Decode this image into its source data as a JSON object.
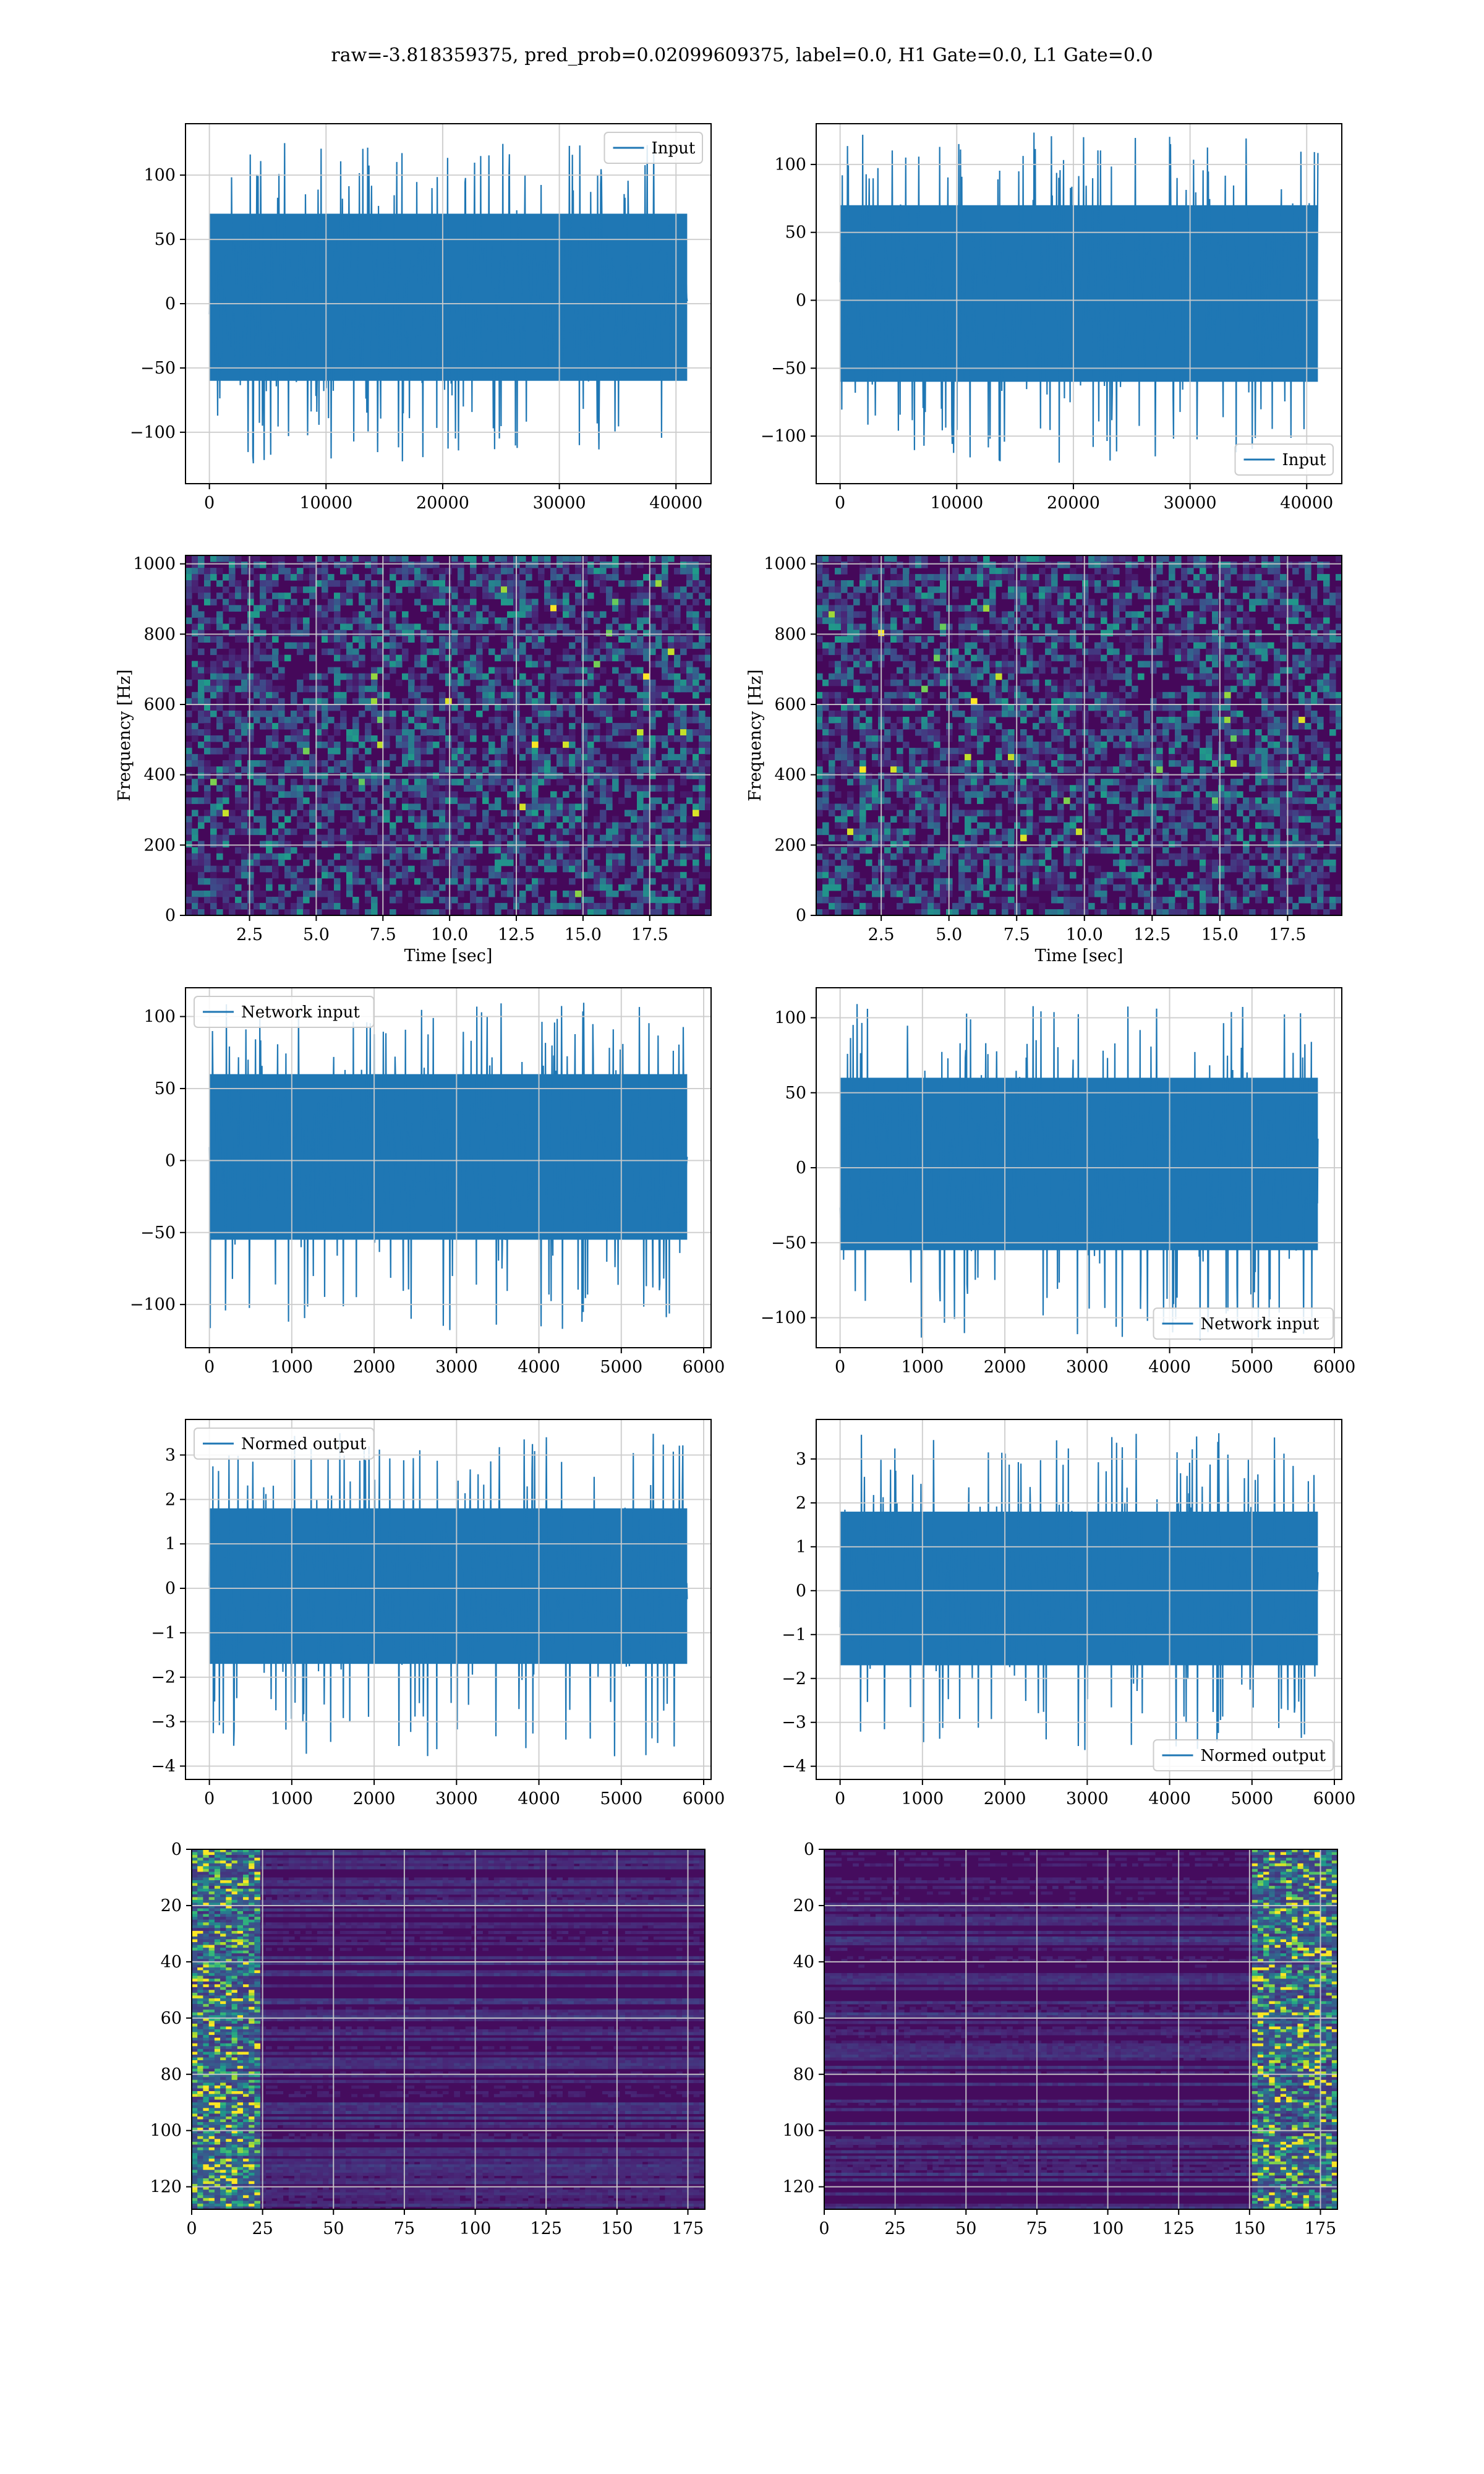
{
  "figure": {
    "suptitle": "raw=-3.818359375, pred_prob=0.02099609375, label=0.0, H1 Gate=0.0, L1 Gate=0.0",
    "colors": {
      "line": "#1f77b4",
      "grid": "#cccccc",
      "spine": "#000000"
    },
    "colormap": "viridis"
  },
  "chart_data": [
    {
      "id": "input-h1",
      "type": "line",
      "title": "",
      "xlabel": "",
      "ylabel": "",
      "series": [
        {
          "name": "Input",
          "n_samples": 40960,
          "amplitude_range": [
            -125,
            125
          ],
          "typical_band": [
            -60,
            70
          ]
        }
      ],
      "xlim": [
        -2048,
        43008
      ],
      "ylim": [
        -140,
        140
      ],
      "xticks": [
        0,
        10000,
        20000,
        30000,
        40000
      ],
      "xtick_labels": [
        "0",
        "10000",
        "20000",
        "30000",
        "40000"
      ],
      "yticks": [
        -100,
        -50,
        0,
        50,
        100
      ],
      "ytick_labels": [
        "−100",
        "−50",
        "0",
        "50",
        "100"
      ],
      "grid": true,
      "legend_placement": "upper right"
    },
    {
      "id": "input-l1",
      "type": "line",
      "title": "",
      "xlabel": "",
      "ylabel": "",
      "series": [
        {
          "name": "Input",
          "n_samples": 40960,
          "amplitude_range": [
            -120,
            125
          ],
          "typical_band": [
            -60,
            70
          ]
        }
      ],
      "xlim": [
        -2048,
        43008
      ],
      "ylim": [
        -135,
        130
      ],
      "xticks": [
        0,
        10000,
        20000,
        30000,
        40000
      ],
      "xtick_labels": [
        "0",
        "10000",
        "20000",
        "30000",
        "40000"
      ],
      "yticks": [
        -100,
        -50,
        0,
        50,
        100
      ],
      "ytick_labels": [
        "−100",
        "−50",
        "0",
        "50",
        "100"
      ],
      "grid": true,
      "legend_placement": "lower right"
    },
    {
      "id": "spectrogram-h1",
      "type": "heatmap",
      "title": "",
      "xlabel": "Time [sec]",
      "ylabel": "Frequency [Hz]",
      "xlim": [
        0.1,
        19.8
      ],
      "ylim": [
        0,
        1024
      ],
      "xticks": [
        2.5,
        5.0,
        7.5,
        10.0,
        12.5,
        15.0,
        17.5
      ],
      "xtick_labels": [
        "2.5",
        "5.0",
        "7.5",
        "10.0",
        "12.5",
        "15.0",
        "17.5"
      ],
      "yticks": [
        0,
        200,
        400,
        600,
        800,
        1000
      ],
      "ytick_labels": [
        "0",
        "200",
        "400",
        "600",
        "800",
        "1000"
      ],
      "grid": true,
      "colormap": "viridis",
      "texture": "speckle"
    },
    {
      "id": "spectrogram-l1",
      "type": "heatmap",
      "title": "",
      "xlabel": "Time [sec]",
      "ylabel": "Frequency [Hz]",
      "xlim": [
        0.1,
        19.5
      ],
      "ylim": [
        0,
        1024
      ],
      "xticks": [
        2.5,
        5.0,
        7.5,
        10.0,
        12.5,
        15.0,
        17.5
      ],
      "xtick_labels": [
        "2.5",
        "5.0",
        "7.5",
        "10.0",
        "12.5",
        "15.0",
        "17.5"
      ],
      "yticks": [
        0,
        200,
        400,
        600,
        800,
        1000
      ],
      "ytick_labels": [
        "0",
        "200",
        "400",
        "600",
        "800",
        "1000"
      ],
      "grid": true,
      "colormap": "viridis",
      "texture": "speckle"
    },
    {
      "id": "network-input-h1",
      "type": "line",
      "title": "",
      "xlabel": "",
      "ylabel": "",
      "series": [
        {
          "name": "Network input",
          "n_samples": 5800,
          "amplitude_range": [
            -120,
            110
          ],
          "typical_band": [
            -55,
            60
          ]
        }
      ],
      "xlim": [
        -290,
        6090
      ],
      "ylim": [
        -130,
        120
      ],
      "xticks": [
        0,
        1000,
        2000,
        3000,
        4000,
        5000,
        6000
      ],
      "xtick_labels": [
        "0",
        "1000",
        "2000",
        "3000",
        "4000",
        "5000",
        "6000"
      ],
      "yticks": [
        -100,
        -50,
        0,
        50,
        100
      ],
      "ytick_labels": [
        "−100",
        "−50",
        "0",
        "50",
        "100"
      ],
      "grid": true,
      "legend_placement": "upper left"
    },
    {
      "id": "network-input-l1",
      "type": "line",
      "title": "",
      "xlabel": "",
      "ylabel": "",
      "series": [
        {
          "name": "Network input",
          "n_samples": 5800,
          "amplitude_range": [
            -115,
            110
          ],
          "typical_band": [
            -55,
            60
          ]
        }
      ],
      "xlim": [
        -290,
        6090
      ],
      "ylim": [
        -120,
        120
      ],
      "xticks": [
        0,
        1000,
        2000,
        3000,
        4000,
        5000,
        6000
      ],
      "xtick_labels": [
        "0",
        "1000",
        "2000",
        "3000",
        "4000",
        "5000",
        "6000"
      ],
      "yticks": [
        -100,
        -50,
        0,
        50,
        100
      ],
      "ytick_labels": [
        "−100",
        "−50",
        "0",
        "50",
        "100"
      ],
      "grid": true,
      "legend_placement": "lower right"
    },
    {
      "id": "normed-output-h1",
      "type": "line",
      "title": "",
      "xlabel": "",
      "ylabel": "",
      "series": [
        {
          "name": "Normed output",
          "n_samples": 5800,
          "amplitude_range": [
            -3.8,
            3.5
          ],
          "typical_band": [
            -1.7,
            1.8
          ]
        }
      ],
      "xlim": [
        -290,
        6090
      ],
      "ylim": [
        -4.3,
        3.8
      ],
      "xticks": [
        0,
        1000,
        2000,
        3000,
        4000,
        5000,
        6000
      ],
      "xtick_labels": [
        "0",
        "1000",
        "2000",
        "3000",
        "4000",
        "5000",
        "6000"
      ],
      "yticks": [
        -4,
        -3,
        -2,
        -1,
        0,
        1,
        2,
        3
      ],
      "ytick_labels": [
        "−4",
        "−3",
        "−2",
        "−1",
        "0",
        "1",
        "2",
        "3"
      ],
      "grid": true,
      "legend_placement": "upper left"
    },
    {
      "id": "normed-output-l1",
      "type": "line",
      "title": "",
      "xlabel": "",
      "ylabel": "",
      "series": [
        {
          "name": "Normed output",
          "n_samples": 5800,
          "amplitude_range": [
            -3.7,
            3.6
          ],
          "typical_band": [
            -1.7,
            1.8
          ]
        }
      ],
      "xlim": [
        -290,
        6090
      ],
      "ylim": [
        -4.3,
        3.9
      ],
      "xticks": [
        0,
        1000,
        2000,
        3000,
        4000,
        5000,
        6000
      ],
      "xtick_labels": [
        "0",
        "1000",
        "2000",
        "3000",
        "4000",
        "5000",
        "6000"
      ],
      "yticks": [
        -4,
        -3,
        -2,
        -1,
        0,
        1,
        2,
        3
      ],
      "ytick_labels": [
        "−4",
        "−3",
        "−2",
        "−1",
        "0",
        "1",
        "2",
        "3"
      ],
      "grid": true,
      "legend_placement": "lower right"
    },
    {
      "id": "feature-map-h1",
      "type": "heatmap",
      "title": "",
      "xlabel": "",
      "ylabel": "",
      "xlim": [
        0,
        181
      ],
      "ylim": [
        128,
        0
      ],
      "xticks": [
        0,
        25,
        50,
        75,
        100,
        125,
        150,
        175
      ],
      "xtick_labels": [
        "0",
        "25",
        "50",
        "75",
        "100",
        "125",
        "150",
        "175"
      ],
      "yticks": [
        0,
        20,
        40,
        60,
        80,
        100,
        120
      ],
      "ytick_labels": [
        "0",
        "20",
        "40",
        "60",
        "80",
        "100",
        "120"
      ],
      "grid": true,
      "colormap": "viridis",
      "high_activation_columns": [
        0,
        25
      ]
    },
    {
      "id": "feature-map-l1",
      "type": "heatmap",
      "title": "",
      "xlabel": "",
      "ylabel": "",
      "xlim": [
        0,
        181
      ],
      "ylim": [
        128,
        0
      ],
      "xticks": [
        0,
        25,
        50,
        75,
        100,
        125,
        150,
        175
      ],
      "xtick_labels": [
        "0",
        "25",
        "50",
        "75",
        "100",
        "125",
        "150",
        "175"
      ],
      "yticks": [
        0,
        20,
        40,
        60,
        80,
        100,
        120
      ],
      "ytick_labels": [
        "0",
        "20",
        "40",
        "60",
        "80",
        "100",
        "120"
      ],
      "grid": true,
      "colormap": "viridis",
      "high_activation_columns": [
        150,
        181
      ]
    }
  ]
}
